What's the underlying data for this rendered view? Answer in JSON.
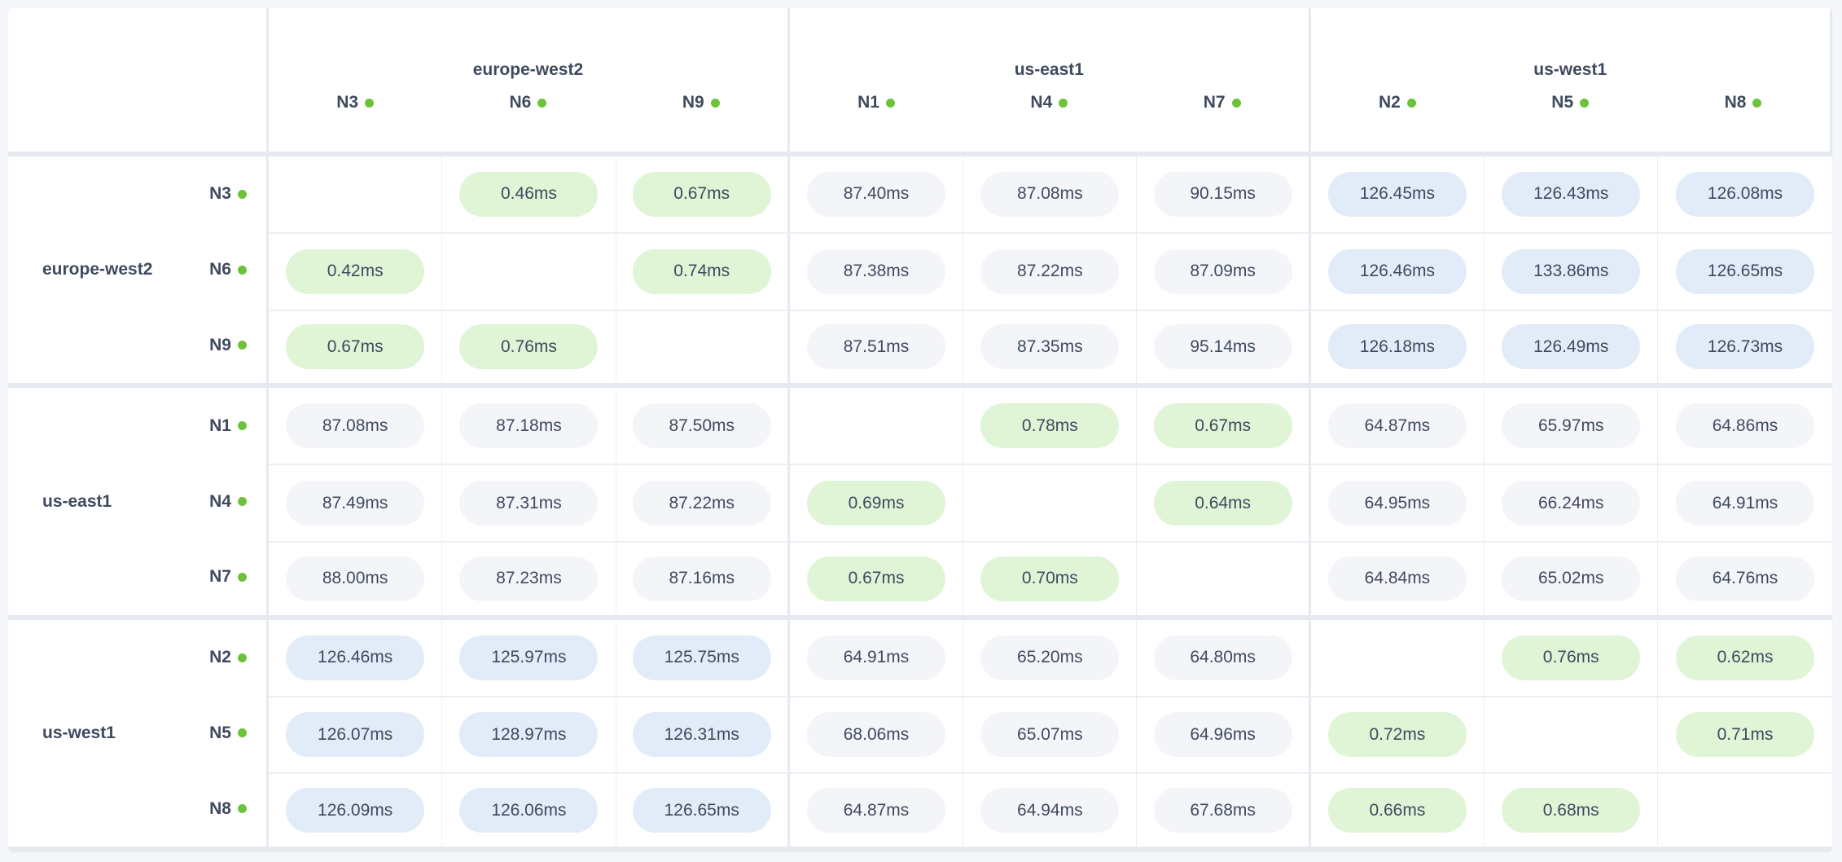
{
  "colors": {
    "local": "#dff5d6",
    "mid": "#f4f5f9",
    "far": "#e1ecf8",
    "status_dot": "#6cc33a",
    "text": "#3f4a5f"
  },
  "regions": [
    {
      "name": "europe-west2",
      "nodes": [
        "N3",
        "N6",
        "N9"
      ]
    },
    {
      "name": "us-east1",
      "nodes": [
        "N1",
        "N4",
        "N7"
      ]
    },
    {
      "name": "us-west1",
      "nodes": [
        "N2",
        "N5",
        "N8"
      ]
    }
  ],
  "node_status_icon": "status-dot-green",
  "matrix": [
    [
      "",
      "0.46ms",
      "0.67ms",
      "87.40ms",
      "87.08ms",
      "90.15ms",
      "126.45ms",
      "126.43ms",
      "126.08ms"
    ],
    [
      "0.42ms",
      "",
      "0.74ms",
      "87.38ms",
      "87.22ms",
      "87.09ms",
      "126.46ms",
      "133.86ms",
      "126.65ms"
    ],
    [
      "0.67ms",
      "0.76ms",
      "",
      "87.51ms",
      "87.35ms",
      "95.14ms",
      "126.18ms",
      "126.49ms",
      "126.73ms"
    ],
    [
      "87.08ms",
      "87.18ms",
      "87.50ms",
      "",
      "0.78ms",
      "0.67ms",
      "64.87ms",
      "65.97ms",
      "64.86ms"
    ],
    [
      "87.49ms",
      "87.31ms",
      "87.22ms",
      "0.69ms",
      "",
      "0.64ms",
      "64.95ms",
      "66.24ms",
      "64.91ms"
    ],
    [
      "88.00ms",
      "87.23ms",
      "87.16ms",
      "0.67ms",
      "0.70ms",
      "",
      "64.84ms",
      "65.02ms",
      "64.76ms"
    ],
    [
      "126.46ms",
      "125.97ms",
      "125.75ms",
      "64.91ms",
      "65.20ms",
      "64.80ms",
      "",
      "0.76ms",
      "0.62ms"
    ],
    [
      "126.07ms",
      "128.97ms",
      "126.31ms",
      "68.06ms",
      "65.07ms",
      "64.96ms",
      "0.72ms",
      "",
      "0.71ms"
    ],
    [
      "126.09ms",
      "126.06ms",
      "126.65ms",
      "64.87ms",
      "64.94ms",
      "67.68ms",
      "0.66ms",
      "0.68ms",
      ""
    ]
  ]
}
